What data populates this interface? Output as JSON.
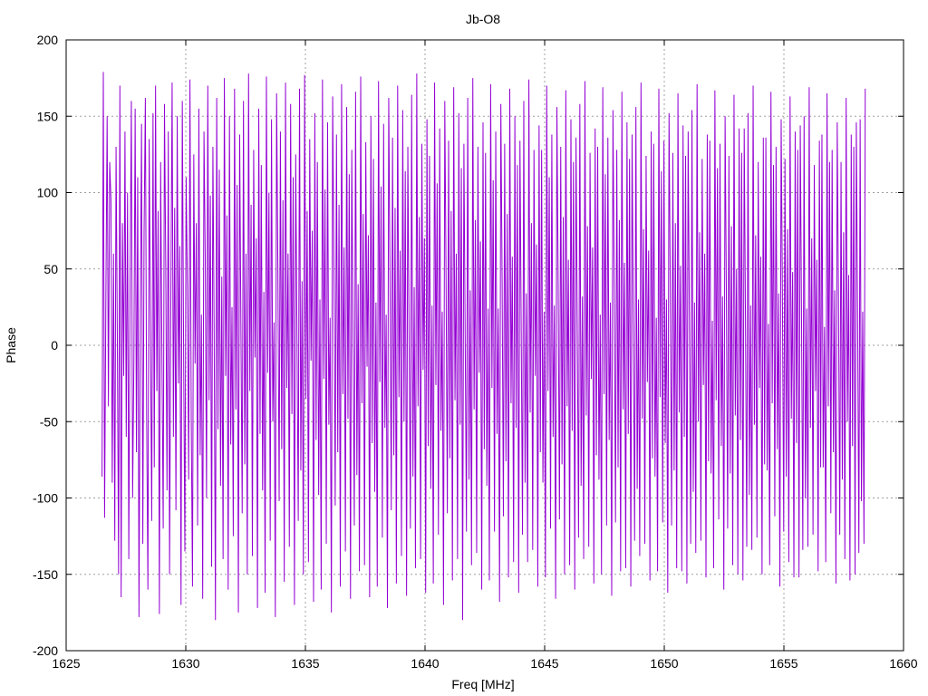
{
  "chart_data": {
    "type": "line",
    "title": "Jb-O8",
    "xlabel": "Freq [MHz]",
    "ylabel": "Phase",
    "xlim": [
      1625,
      1660
    ],
    "ylim": [
      -200,
      200
    ],
    "xticks": [
      1625,
      1630,
      1635,
      1640,
      1645,
      1650,
      1655,
      1660
    ],
    "yticks": [
      -200,
      -150,
      -100,
      -50,
      0,
      50,
      100,
      150,
      200
    ],
    "grid": true,
    "legend": "none",
    "series": [
      {
        "color": "#9400d3",
        "x_start": 1626.5,
        "x_end": 1658.4,
        "y": [
          -86,
          179,
          -113,
          30,
          150,
          -40,
          120,
          95,
          -90,
          60,
          -128,
          130,
          5,
          -150,
          170,
          -165,
          80,
          -20,
          140,
          -60,
          100,
          -140,
          40,
          160,
          -100,
          -10,
          155,
          -70,
          110,
          -178,
          20,
          145,
          -130,
          75,
          162,
          -45,
          -160,
          135,
          10,
          -115,
          152,
          -80,
          170,
          -30,
          88,
          -176,
          120,
          -5,
          -120,
          158,
          50,
          -95,
          140,
          -150,
          30,
          172,
          -60,
          90,
          -108,
          150,
          -25,
          65,
          -170,
          160,
          0,
          -135,
          110,
          38,
          -88,
          174,
          -48,
          -158,
          125,
          -12,
          80,
          -118,
          155,
          -72,
          20,
          -166,
          140,
          58,
          -100,
          170,
          -36,
          98,
          -145,
          130,
          8,
          -180,
          162,
          -55,
          115,
          -92,
          45,
          -140,
          175,
          -20,
          85,
          -160,
          150,
          -65,
          25,
          -125,
          168,
          -42,
          105,
          -175,
          138,
          12,
          -110,
          160,
          -78,
          60,
          -150,
          178,
          -30,
          92,
          -138,
          128,
          -8,
          70,
          -172,
          155,
          -58,
          118,
          -95,
          35,
          -162,
          176,
          -18,
          100,
          -128,
          148,
          -50,
          15,
          -178,
          165,
          52,
          -102,
          140,
          -68,
          95,
          -155,
          172,
          -28,
          60,
          -132,
          158,
          -45,
          110,
          -170,
          125,
          5,
          -115,
          168,
          -82,
          42,
          -150,
          177,
          -35,
          88,
          -142,
          135,
          -10,
          75,
          -168,
          152,
          -62,
          120,
          -98,
          30,
          -160,
          174,
          -22,
          102,
          -130,
          146,
          -52,
          18,
          -175,
          163,
          48,
          -105,
          138,
          -70,
          92,
          -158,
          171,
          -32,
          64,
          -135,
          156,
          -48,
          112,
          -166,
          128,
          2,
          -118,
          166,
          -85,
          40,
          -148,
          176,
          -38,
          86,
          -144,
          133,
          -14,
          72,
          -165,
          150,
          -64,
          122,
          -96,
          28,
          -158,
          173,
          -24,
          104,
          -126,
          145,
          -54,
          20,
          -172,
          162,
          46,
          -108,
          136,
          -72,
          90,
          -156,
          170,
          -34,
          62,
          -138,
          154,
          -50,
          114,
          -164,
          130,
          4,
          -120,
          164,
          -86,
          38,
          -146,
          178,
          -40,
          84,
          -140,
          132,
          -16,
          70,
          -162,
          148,
          -66,
          124,
          -94,
          26,
          -156,
          172,
          -26,
          106,
          -124,
          142,
          -56,
          22,
          -170,
          160,
          44,
          -110,
          134,
          -74,
          88,
          -154,
          169,
          -36,
          60,
          -140,
          152,
          -52,
          116,
          -180,
          132,
          6,
          -122,
          162,
          -88,
          36,
          -144,
          175,
          -42,
          82,
          -136,
          130,
          -18,
          68,
          -160,
          146,
          -68,
          126,
          -92,
          24,
          -154,
          171,
          -28,
          108,
          -122,
          140,
          -58,
          24,
          -168,
          158,
          42,
          -112,
          132,
          -76,
          86,
          -152,
          168,
          -38,
          58,
          -142,
          150,
          -54,
          118,
          -162,
          134,
          8,
          -124,
          160,
          -90,
          34,
          -142,
          174,
          -44,
          80,
          -134,
          128,
          -20,
          66,
          -158,
          144,
          -70,
          128,
          -90,
          22,
          -152,
          170,
          -30,
          110,
          -120,
          138,
          -60,
          26,
          -166,
          156,
          40,
          -114,
          130,
          -78,
          84,
          -150,
          167,
          -40,
          56,
          -144,
          148,
          -56,
          120,
          -160,
          136,
          10,
          -126,
          158,
          -92,
          32,
          -140,
          173,
          -46,
          78,
          -132,
          126,
          -22,
          64,
          -156,
          142,
          -72,
          130,
          -88,
          20,
          -150,
          169,
          -32,
          112,
          -118,
          136,
          -62,
          28,
          -164,
          154,
          38,
          -116,
          128,
          -80,
          82,
          -148,
          166,
          -42,
          54,
          -146,
          146,
          -58,
          122,
          -158,
          138,
          12,
          -128,
          156,
          -94,
          30,
          -138,
          172,
          -48,
          76,
          -130,
          124,
          -24,
          62,
          -154,
          140,
          -74,
          132,
          -86,
          18,
          -148,
          168,
          -34,
          114,
          -116,
          134,
          -64,
          30,
          -162,
          152,
          36,
          -118,
          126,
          -82,
          80,
          -146,
          165,
          -44,
          52,
          -148,
          144,
          -60,
          124,
          -156,
          140,
          14,
          -130,
          154,
          -96,
          28,
          -136,
          171,
          -50,
          74,
          -128,
          122,
          -26,
          60,
          -152,
          138,
          -76,
          134,
          -84,
          16,
          -146,
          167,
          -36,
          116,
          -114,
          132,
          -66,
          32,
          -160,
          150,
          34,
          -120,
          124,
          -84,
          78,
          -144,
          164,
          -46,
          50,
          -150,
          142,
          -62,
          126,
          -154,
          142,
          16,
          -132,
          152,
          -98,
          26,
          -134,
          170,
          -52,
          72,
          -126,
          120,
          -28,
          58,
          -150,
          136,
          -78,
          136,
          -82,
          14,
          -144,
          166,
          -38,
          118,
          -112,
          130,
          -68,
          34,
          -158,
          148,
          32,
          -122,
          122,
          -86,
          76,
          -142,
          163,
          -48,
          48,
          -152,
          140,
          -64,
          128,
          -152,
          144,
          18,
          -134,
          150,
          -100,
          24,
          -132,
          169,
          -54,
          70,
          -124,
          118,
          -30,
          56,
          -148,
          134,
          -80,
          138,
          -80,
          12,
          -142,
          165,
          -40,
          120,
          -110,
          128,
          -70,
          36,
          -156,
          146,
          30,
          -124,
          120,
          -88,
          74,
          -140,
          162,
          -50,
          46,
          -154,
          138,
          -66,
          130,
          -150,
          146,
          20,
          -136,
          148,
          -102,
          22,
          -130,
          168
        ]
      }
    ]
  }
}
